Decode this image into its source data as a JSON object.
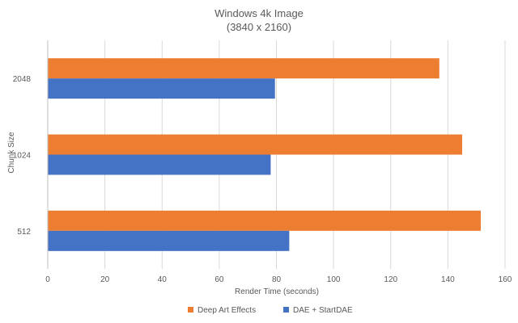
{
  "chart_data": {
    "type": "bar",
    "orientation": "horizontal",
    "title": "Windows 4k Image",
    "subtitle": "(3840 x 2160)",
    "xlabel": "Render Time (seconds)",
    "ylabel": "Chunk Size",
    "categories": [
      "2048",
      "1024",
      "512"
    ],
    "xlim": [
      0,
      160
    ],
    "xticks": [
      0,
      20,
      40,
      60,
      80,
      100,
      120,
      140,
      160
    ],
    "grid": true,
    "legend_position": "bottom",
    "series": [
      {
        "name": "Deep Art Effects",
        "color": "#ED7D31",
        "values": [
          137,
          145,
          151.5
        ]
      },
      {
        "name": "DAE + StartDAE",
        "color": "#4472C4",
        "values": [
          79.5,
          78,
          84.5
        ]
      }
    ]
  }
}
